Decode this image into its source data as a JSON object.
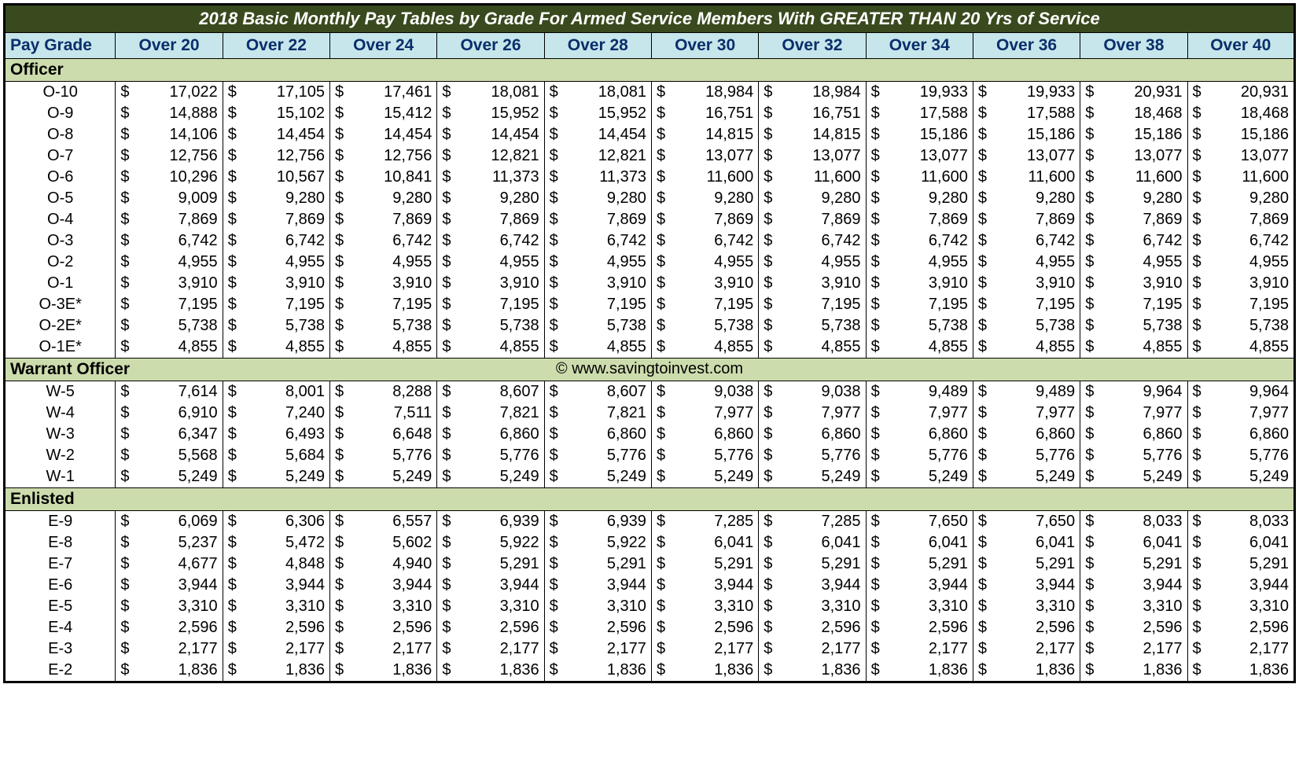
{
  "title": "2018 Basic Monthly Pay Tables by Grade For Armed Service Members With GREATER THAN 20 Yrs of Service",
  "colors": {
    "title_bg": "#3a4a1f",
    "title_fg": "#ffffff",
    "header_bg": "#c7e6eb",
    "header_fg": "#0a2e6b",
    "section_bg": "#cddcad",
    "border": "#000000"
  },
  "fontsizes": {
    "title": 22,
    "header": 21,
    "section": 21,
    "data": 20
  },
  "currency_symbol": "$",
  "header": {
    "paygrade_label": "Pay Grade",
    "columns": [
      "Over 20",
      "Over 22",
      "Over 24",
      "Over 26",
      "Over 28",
      "Over 30",
      "Over 32",
      "Over 34",
      "Over 36",
      "Over 38",
      "Over 40"
    ]
  },
  "copyright": "© www.savingtoinvest.com",
  "sections": [
    {
      "name": "Officer",
      "copyright_here": false,
      "rows": [
        {
          "grade": "O-10",
          "values": [
            "17,022",
            "17,105",
            "17,461",
            "18,081",
            "18,081",
            "18,984",
            "18,984",
            "19,933",
            "19,933",
            "20,931",
            "20,931"
          ]
        },
        {
          "grade": "O-9",
          "values": [
            "14,888",
            "15,102",
            "15,412",
            "15,952",
            "15,952",
            "16,751",
            "16,751",
            "17,588",
            "17,588",
            "18,468",
            "18,468"
          ]
        },
        {
          "grade": "O-8",
          "values": [
            "14,106",
            "14,454",
            "14,454",
            "14,454",
            "14,454",
            "14,815",
            "14,815",
            "15,186",
            "15,186",
            "15,186",
            "15,186"
          ]
        },
        {
          "grade": "O-7",
          "values": [
            "12,756",
            "12,756",
            "12,756",
            "12,821",
            "12,821",
            "13,077",
            "13,077",
            "13,077",
            "13,077",
            "13,077",
            "13,077"
          ]
        },
        {
          "grade": "O-6",
          "values": [
            "10,296",
            "10,567",
            "10,841",
            "11,373",
            "11,373",
            "11,600",
            "11,600",
            "11,600",
            "11,600",
            "11,600",
            "11,600"
          ]
        },
        {
          "grade": "O-5",
          "values": [
            "9,009",
            "9,280",
            "9,280",
            "9,280",
            "9,280",
            "9,280",
            "9,280",
            "9,280",
            "9,280",
            "9,280",
            "9,280"
          ]
        },
        {
          "grade": "O-4",
          "values": [
            "7,869",
            "7,869",
            "7,869",
            "7,869",
            "7,869",
            "7,869",
            "7,869",
            "7,869",
            "7,869",
            "7,869",
            "7,869"
          ]
        },
        {
          "grade": "O-3",
          "values": [
            "6,742",
            "6,742",
            "6,742",
            "6,742",
            "6,742",
            "6,742",
            "6,742",
            "6,742",
            "6,742",
            "6,742",
            "6,742"
          ]
        },
        {
          "grade": "O-2",
          "values": [
            "4,955",
            "4,955",
            "4,955",
            "4,955",
            "4,955",
            "4,955",
            "4,955",
            "4,955",
            "4,955",
            "4,955",
            "4,955"
          ]
        },
        {
          "grade": "O-1",
          "values": [
            "3,910",
            "3,910",
            "3,910",
            "3,910",
            "3,910",
            "3,910",
            "3,910",
            "3,910",
            "3,910",
            "3,910",
            "3,910"
          ]
        },
        {
          "grade": "O-3E*",
          "values": [
            "7,195",
            "7,195",
            "7,195",
            "7,195",
            "7,195",
            "7,195",
            "7,195",
            "7,195",
            "7,195",
            "7,195",
            "7,195"
          ]
        },
        {
          "grade": "O-2E*",
          "values": [
            "5,738",
            "5,738",
            "5,738",
            "5,738",
            "5,738",
            "5,738",
            "5,738",
            "5,738",
            "5,738",
            "5,738",
            "5,738"
          ]
        },
        {
          "grade": "O-1E*",
          "values": [
            "4,855",
            "4,855",
            "4,855",
            "4,855",
            "4,855",
            "4,855",
            "4,855",
            "4,855",
            "4,855",
            "4,855",
            "4,855"
          ]
        }
      ]
    },
    {
      "name": "Warrant Officer",
      "copyright_here": true,
      "rows": [
        {
          "grade": "W-5",
          "values": [
            "7,614",
            "8,001",
            "8,288",
            "8,607",
            "8,607",
            "9,038",
            "9,038",
            "9,489",
            "9,489",
            "9,964",
            "9,964"
          ]
        },
        {
          "grade": "W-4",
          "values": [
            "6,910",
            "7,240",
            "7,511",
            "7,821",
            "7,821",
            "7,977",
            "7,977",
            "7,977",
            "7,977",
            "7,977",
            "7,977"
          ]
        },
        {
          "grade": "W-3",
          "values": [
            "6,347",
            "6,493",
            "6,648",
            "6,860",
            "6,860",
            "6,860",
            "6,860",
            "6,860",
            "6,860",
            "6,860",
            "6,860"
          ]
        },
        {
          "grade": "W-2",
          "values": [
            "5,568",
            "5,684",
            "5,776",
            "5,776",
            "5,776",
            "5,776",
            "5,776",
            "5,776",
            "5,776",
            "5,776",
            "5,776"
          ]
        },
        {
          "grade": "W-1",
          "values": [
            "5,249",
            "5,249",
            "5,249",
            "5,249",
            "5,249",
            "5,249",
            "5,249",
            "5,249",
            "5,249",
            "5,249",
            "5,249"
          ]
        }
      ]
    },
    {
      "name": " Enlisted",
      "copyright_here": false,
      "rows": [
        {
          "grade": "E-9",
          "values": [
            "6,069",
            "6,306",
            "6,557",
            "6,939",
            "6,939",
            "7,285",
            "7,285",
            "7,650",
            "7,650",
            "8,033",
            "8,033"
          ]
        },
        {
          "grade": "E-8",
          "values": [
            "5,237",
            "5,472",
            "5,602",
            "5,922",
            "5,922",
            "6,041",
            "6,041",
            "6,041",
            "6,041",
            "6,041",
            "6,041"
          ]
        },
        {
          "grade": "E-7",
          "values": [
            "4,677",
            "4,848",
            "4,940",
            "5,291",
            "5,291",
            "5,291",
            "5,291",
            "5,291",
            "5,291",
            "5,291",
            "5,291"
          ]
        },
        {
          "grade": "E-6",
          "values": [
            "3,944",
            "3,944",
            "3,944",
            "3,944",
            "3,944",
            "3,944",
            "3,944",
            "3,944",
            "3,944",
            "3,944",
            "3,944"
          ]
        },
        {
          "grade": "E-5",
          "values": [
            "3,310",
            "3,310",
            "3,310",
            "3,310",
            "3,310",
            "3,310",
            "3,310",
            "3,310",
            "3,310",
            "3,310",
            "3,310"
          ]
        },
        {
          "grade": "E-4",
          "values": [
            "2,596",
            "2,596",
            "2,596",
            "2,596",
            "2,596",
            "2,596",
            "2,596",
            "2,596",
            "2,596",
            "2,596",
            "2,596"
          ]
        },
        {
          "grade": "E-3",
          "values": [
            "2,177",
            "2,177",
            "2,177",
            "2,177",
            "2,177",
            "2,177",
            "2,177",
            "2,177",
            "2,177",
            "2,177",
            "2,177"
          ]
        },
        {
          "grade": "E-2",
          "values": [
            "1,836",
            "1,836",
            "1,836",
            "1,836",
            "1,836",
            "1,836",
            "1,836",
            "1,836",
            "1,836",
            "1,836",
            "1,836"
          ]
        }
      ]
    }
  ]
}
